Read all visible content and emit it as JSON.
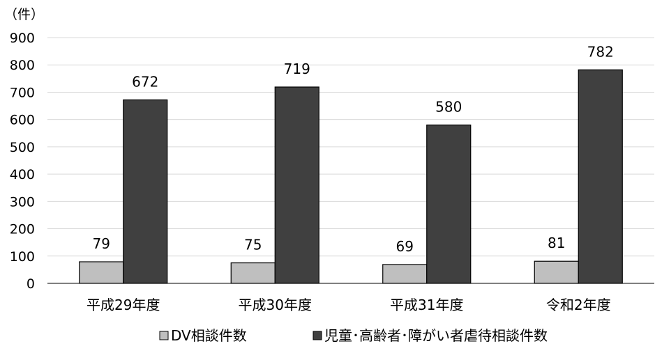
{
  "chart_data": {
    "type": "bar",
    "unit_label": "（件）",
    "categories": [
      "平成29年度",
      "平成30年度",
      "平成31年度",
      "令和2年度"
    ],
    "series": [
      {
        "name": "DV相談件数",
        "values": [
          79,
          75,
          69,
          81
        ],
        "color": "#bfbfbf"
      },
      {
        "name": "児童･高齢者･障がい者虐待相談件数",
        "values": [
          672,
          719,
          580,
          782
        ],
        "color": "#404040"
      }
    ],
    "ylim": [
      0,
      900
    ],
    "yticks": [
      "0",
      "100",
      "200",
      "300",
      "400",
      "500",
      "600",
      "700",
      "800",
      "900"
    ],
    "grid": true,
    "legend_position": "bottom",
    "data_labels": true
  }
}
